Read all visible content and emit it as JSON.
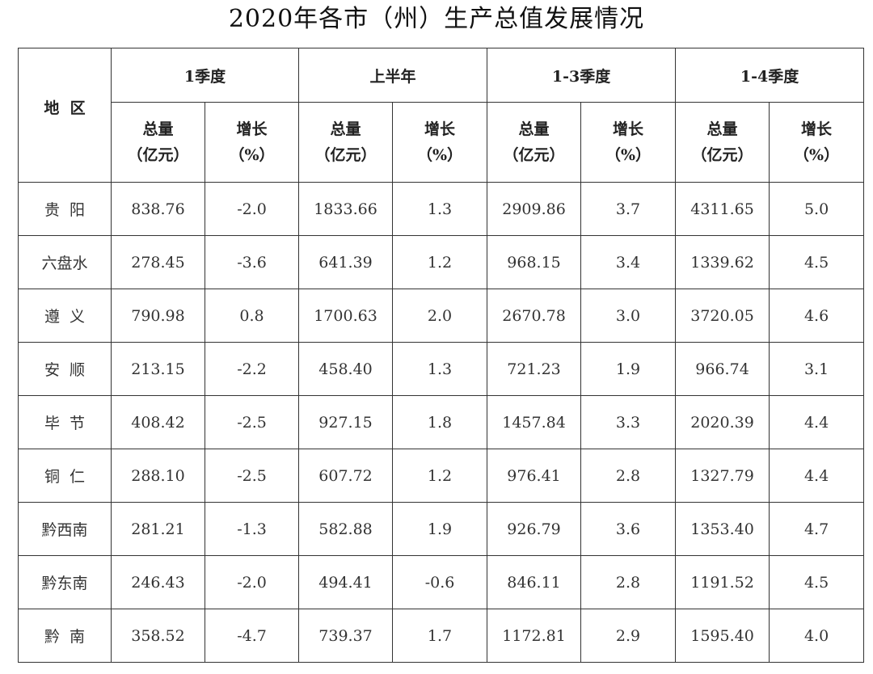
{
  "title": "2020年各市（州）生产总值发展情况",
  "headers": {
    "region": "地  区",
    "periods": [
      "1季度",
      "上半年",
      "1-3季度",
      "1-4季度"
    ],
    "total_line1": "总量",
    "total_line2": "（亿元）",
    "growth_line1": "增长",
    "growth_line2": "（%）"
  },
  "rows": [
    {
      "region": "贵  阳",
      "values": [
        "838.76",
        "-2.0",
        "1833.66",
        "1.3",
        "2909.86",
        "3.7",
        "4311.65",
        "5.0"
      ]
    },
    {
      "region": "六盘水",
      "values": [
        "278.45",
        "-3.6",
        "641.39",
        "1.2",
        "968.15",
        "3.4",
        "1339.62",
        "4.5"
      ]
    },
    {
      "region": "遵  义",
      "values": [
        "790.98",
        "0.8",
        "1700.63",
        "2.0",
        "2670.78",
        "3.0",
        "3720.05",
        "4.6"
      ]
    },
    {
      "region": "安  顺",
      "values": [
        "213.15",
        "-2.2",
        "458.40",
        "1.3",
        "721.23",
        "1.9",
        "966.74",
        "3.1"
      ]
    },
    {
      "region": "毕  节",
      "values": [
        "408.42",
        "-2.5",
        "927.15",
        "1.8",
        "1457.84",
        "3.3",
        "2020.39",
        "4.4"
      ]
    },
    {
      "region": "铜  仁",
      "values": [
        "288.10",
        "-2.5",
        "607.72",
        "1.2",
        "976.41",
        "2.8",
        "1327.79",
        "4.4"
      ]
    },
    {
      "region": "黔西南",
      "values": [
        "281.21",
        "-1.3",
        "582.88",
        "1.9",
        "926.79",
        "3.6",
        "1353.40",
        "4.7"
      ]
    },
    {
      "region": "黔东南",
      "values": [
        "246.43",
        "-2.0",
        "494.41",
        "-0.6",
        "846.11",
        "2.8",
        "1191.52",
        "4.5"
      ]
    },
    {
      "region": "黔  南",
      "values": [
        "358.52",
        "-4.7",
        "739.37",
        "1.7",
        "1172.81",
        "2.9",
        "1595.40",
        "4.0"
      ]
    }
  ]
}
